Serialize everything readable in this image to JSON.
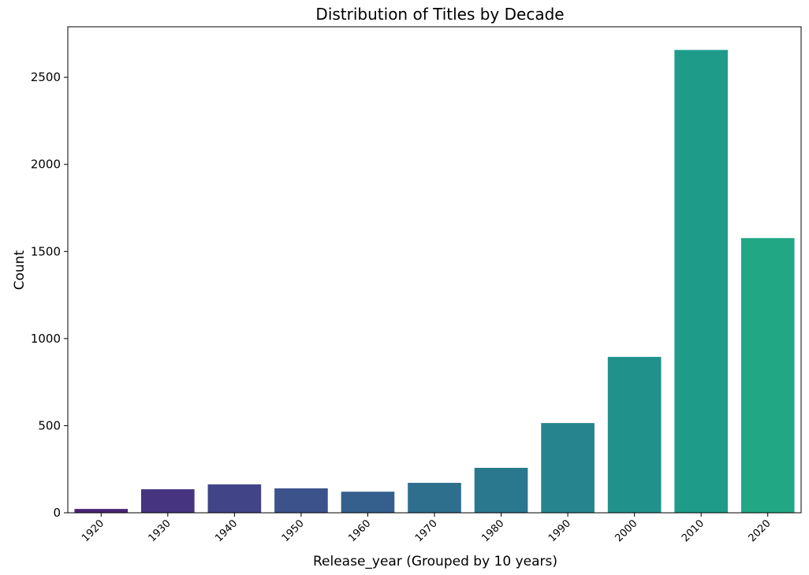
{
  "chart_data": {
    "type": "bar",
    "title": "Distribution of Titles by Decade",
    "xlabel": "Release_year (Grouped by 10 years)",
    "ylabel": "Count",
    "categories": [
      "1920",
      "1930",
      "1940",
      "1950",
      "1960",
      "1970",
      "1980",
      "1990",
      "2000",
      "2010",
      "2020"
    ],
    "values": [
      22,
      135,
      163,
      140,
      121,
      172,
      258,
      515,
      895,
      2657,
      1577
    ],
    "ylim": [
      0,
      2790
    ],
    "yticks": [
      0,
      500,
      1000,
      1500,
      2000,
      2500
    ],
    "colors": [
      "#482475",
      "#463480",
      "#414487",
      "#3b528b",
      "#355f8d",
      "#2e6f8e",
      "#2a788e",
      "#25848e",
      "#21918c",
      "#1e9c89",
      "#22a785"
    ],
    "grid": false,
    "legend": "none"
  }
}
